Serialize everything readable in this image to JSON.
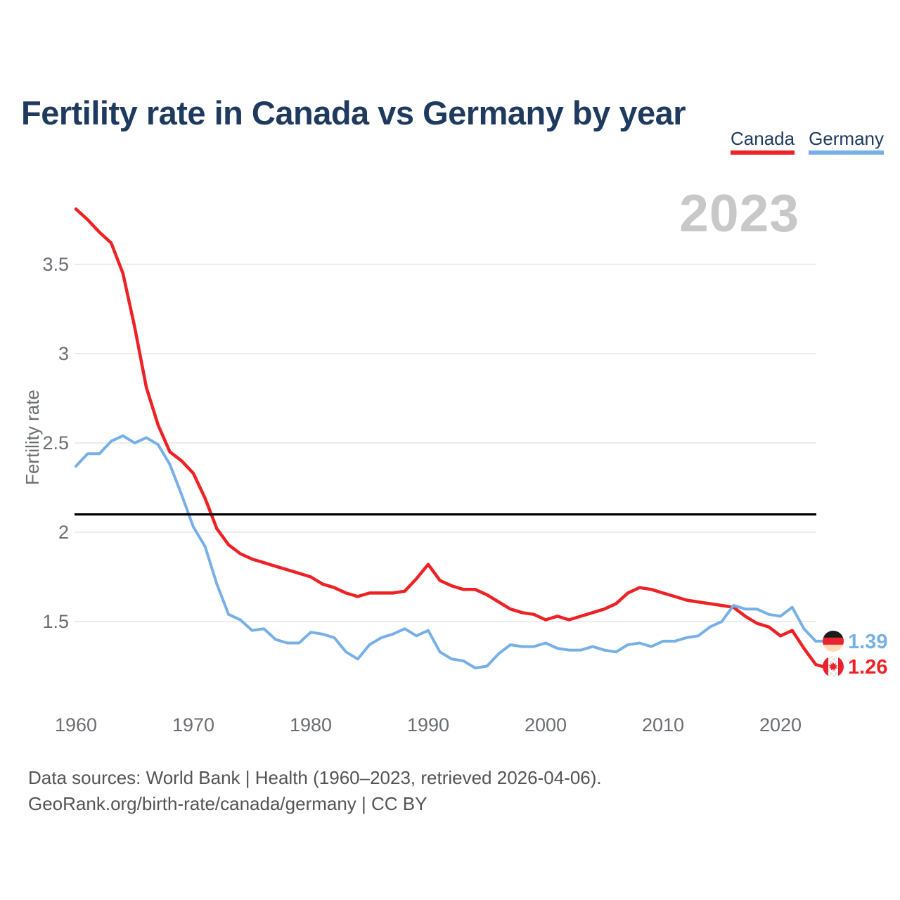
{
  "title": "Fertility rate in Canada vs Germany by year",
  "watermark": "2023",
  "legend": {
    "position": "top-right",
    "items": [
      {
        "label": "Canada",
        "color": "#ee2125"
      },
      {
        "label": "Germany",
        "color": "#76b0e6"
      }
    ]
  },
  "y_axis": {
    "title": "Fertility rate",
    "ticks": [
      "3.5",
      "3",
      "2.5",
      "2",
      "1.5"
    ],
    "tick_values": [
      3.5,
      3.0,
      2.5,
      2.0,
      1.5
    ]
  },
  "x_axis": {
    "ticks": [
      1960,
      1970,
      1980,
      1990,
      2000,
      2010,
      2020
    ]
  },
  "reference_line": {
    "value": 2.1,
    "color": "#000000"
  },
  "end_labels": [
    {
      "series": "Germany",
      "value": "1.39",
      "flag": "germany-flag-icon",
      "color": "#76b0e6"
    },
    {
      "series": "Canada",
      "value": "1.26",
      "flag": "canada-flag-icon",
      "color": "#ee2125"
    }
  ],
  "footer": {
    "line1": "Data sources: World Bank | Health (1960–2023, retrieved 2026-04-06).",
    "line2": "GeoRank.org/birth-rate/canada/germany | CC BY"
  },
  "colors": {
    "title": "#1f3a5f",
    "tick_label": "#6a6d71",
    "gridline": "#e6e6e6",
    "watermark": "#c8c8c8",
    "footer": "#545454",
    "canada": "#ee2125",
    "germany": "#76b0e6",
    "flag_black": "#1b1b1b",
    "flag_gold": "#ffd9b3",
    "flag_red": "#e8232d"
  },
  "chart_data": {
    "type": "line",
    "title": "Fertility rate in Canada vs Germany by year",
    "xlabel": "",
    "ylabel": "Fertility rate",
    "xlim": [
      1960,
      2023
    ],
    "ylim": [
      1.1,
      3.9
    ],
    "grid": "horizontal",
    "legend_position": "top-right",
    "reference_line": 2.1,
    "years": [
      1960,
      1961,
      1962,
      1963,
      1964,
      1965,
      1966,
      1967,
      1968,
      1969,
      1970,
      1971,
      1972,
      1973,
      1974,
      1975,
      1976,
      1977,
      1978,
      1979,
      1980,
      1981,
      1982,
      1983,
      1984,
      1985,
      1986,
      1987,
      1988,
      1989,
      1990,
      1991,
      1992,
      1993,
      1994,
      1995,
      1996,
      1997,
      1998,
      1999,
      2000,
      2001,
      2002,
      2003,
      2004,
      2005,
      2006,
      2007,
      2008,
      2009,
      2010,
      2011,
      2012,
      2013,
      2014,
      2015,
      2016,
      2017,
      2018,
      2019,
      2020,
      2021,
      2022,
      2023
    ],
    "series": [
      {
        "name": "Canada",
        "color": "#ee2125",
        "values": [
          3.81,
          3.75,
          3.68,
          3.62,
          3.45,
          3.15,
          2.81,
          2.6,
          2.45,
          2.4,
          2.33,
          2.19,
          2.02,
          1.93,
          1.88,
          1.85,
          1.83,
          1.81,
          1.79,
          1.77,
          1.75,
          1.71,
          1.69,
          1.66,
          1.64,
          1.66,
          1.66,
          1.66,
          1.67,
          1.74,
          1.82,
          1.73,
          1.7,
          1.68,
          1.68,
          1.65,
          1.61,
          1.57,
          1.55,
          1.54,
          1.51,
          1.53,
          1.51,
          1.53,
          1.55,
          1.57,
          1.6,
          1.66,
          1.69,
          1.68,
          1.66,
          1.64,
          1.62,
          1.61,
          1.6,
          1.59,
          1.58,
          1.53,
          1.49,
          1.47,
          1.42,
          1.45,
          1.35,
          1.26
        ]
      },
      {
        "name": "Germany",
        "color": "#76b0e6",
        "values": [
          2.37,
          2.44,
          2.44,
          2.51,
          2.54,
          2.5,
          2.53,
          2.49,
          2.38,
          2.21,
          2.03,
          1.92,
          1.71,
          1.54,
          1.51,
          1.45,
          1.46,
          1.4,
          1.38,
          1.38,
          1.44,
          1.43,
          1.41,
          1.33,
          1.29,
          1.37,
          1.41,
          1.43,
          1.46,
          1.42,
          1.45,
          1.33,
          1.29,
          1.28,
          1.24,
          1.25,
          1.32,
          1.37,
          1.36,
          1.36,
          1.38,
          1.35,
          1.34,
          1.34,
          1.36,
          1.34,
          1.33,
          1.37,
          1.38,
          1.36,
          1.39,
          1.39,
          1.41,
          1.42,
          1.47,
          1.5,
          1.59,
          1.57,
          1.57,
          1.54,
          1.53,
          1.58,
          1.46,
          1.39
        ]
      }
    ]
  }
}
